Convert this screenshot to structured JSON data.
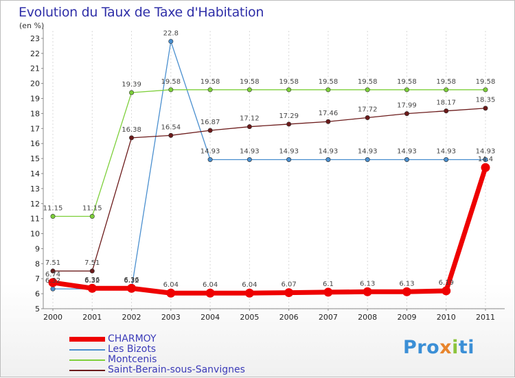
{
  "chart_data": {
    "type": "line",
    "title": "Evolution du Taux de Taxe d'Habitation",
    "unit": "(en %)",
    "x": [
      "2000",
      "2001",
      "2002",
      "2003",
      "2004",
      "2005",
      "2006",
      "2007",
      "2008",
      "2009",
      "2010",
      "2011"
    ],
    "y_ticks": [
      5,
      6,
      7,
      8,
      9,
      10,
      11,
      12,
      13,
      14,
      15,
      16,
      17,
      18,
      19,
      20,
      21,
      22,
      23
    ],
    "ylim": [
      5,
      23.5
    ],
    "grid": "vertical dashed",
    "legend_position": "bottom-left",
    "series": [
      {
        "name": "CHARMOY",
        "color": "#ee0000",
        "values": [
          6.74,
          6.36,
          6.36,
          6.04,
          6.04,
          6.04,
          6.07,
          6.1,
          6.13,
          6.13,
          6.19,
          14.4
        ],
        "labels": [
          "6.74",
          "6.36",
          "6.36",
          "6.04",
          "6.04",
          "6.04",
          "6.07",
          "6.1",
          "6.13",
          "6.13",
          "6.19",
          "14.4"
        ]
      },
      {
        "name": "Les Bizots",
        "color": "#4a8fcf",
        "values": [
          6.32,
          6.32,
          6.32,
          22.8,
          14.93,
          14.93,
          14.93,
          14.93,
          14.93,
          14.93,
          14.93,
          14.93
        ],
        "labels": [
          "6.32",
          "6.32",
          "6.32",
          "22.8",
          "14.93",
          "14.93",
          "14.93",
          "14.93",
          "14.93",
          "14.93",
          "14.93",
          "14.93"
        ]
      },
      {
        "name": "Montcenis",
        "color": "#7dcf3a",
        "values": [
          11.15,
          11.15,
          19.39,
          19.58,
          19.58,
          19.58,
          19.58,
          19.58,
          19.58,
          19.58,
          19.58,
          19.58
        ],
        "labels": [
          "11.15",
          "11.15",
          "19.39",
          "19.58",
          "19.58",
          "19.58",
          "19.58",
          "19.58",
          "19.58",
          "19.58",
          "19.58",
          "19.58"
        ]
      },
      {
        "name": "Saint-Berain-sous-Sanvignes",
        "color": "#6b1a1a",
        "values": [
          7.51,
          7.51,
          16.38,
          16.54,
          16.87,
          17.12,
          17.29,
          17.46,
          17.72,
          17.99,
          18.17,
          18.35
        ],
        "labels": [
          "7.51",
          "7.51",
          "16.38",
          "16.54",
          "16.87",
          "17.12",
          "17.29",
          "17.46",
          "17.72",
          "17.99",
          "18.17",
          "18.35"
        ]
      }
    ]
  },
  "logo": {
    "p1": "Pro",
    "p2": "x",
    "p3": "i",
    "p4": "ti"
  }
}
